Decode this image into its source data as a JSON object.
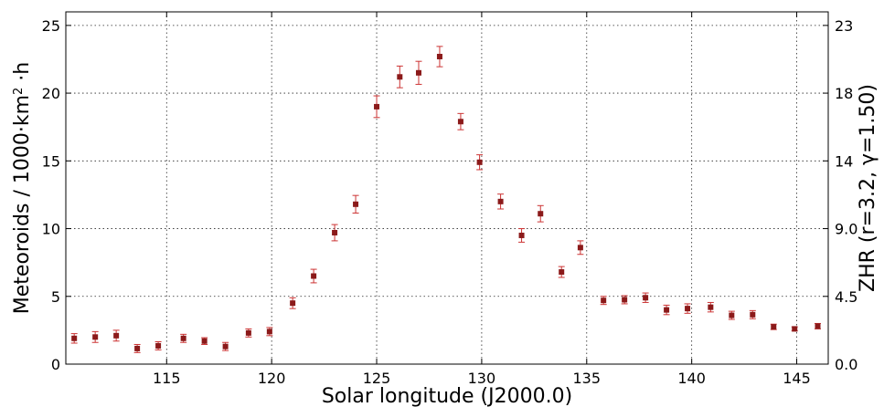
{
  "chart_data": {
    "type": "scatter",
    "xlabel": "Solar longitude (J2000.0)",
    "ylabel": "Meteoroids / 1000·km²·h",
    "ylabel_parts": {
      "prefix": "Meteoroids / 1000·km",
      "sup": "2",
      "suffix": " ·h"
    },
    "y2label": "ZHR (r=3.2, γ=1.50)",
    "xlim": [
      110.2,
      146.5
    ],
    "ylim": [
      0,
      26
    ],
    "xticks": [
      115,
      120,
      125,
      130,
      135,
      140,
      145
    ],
    "yticks": [
      0,
      5,
      10,
      15,
      20,
      25
    ],
    "y2ticks": [
      {
        "value": 0,
        "label": "0.0"
      },
      {
        "value": 5,
        "label": "4.5"
      },
      {
        "value": 10,
        "label": "9.0"
      },
      {
        "value": 15,
        "label": "14"
      },
      {
        "value": 20,
        "label": "18"
      },
      {
        "value": 25,
        "label": "23"
      }
    ],
    "grid": true,
    "marker_color": "#8b1a1a",
    "errorbar_color": "#cc3333",
    "series": [
      {
        "points": [
          {
            "x": 110.6,
            "y": 1.9,
            "err": 0.35
          },
          {
            "x": 111.6,
            "y": 2.0,
            "err": 0.4
          },
          {
            "x": 112.6,
            "y": 2.1,
            "err": 0.4
          },
          {
            "x": 113.6,
            "y": 1.15,
            "err": 0.3
          },
          {
            "x": 114.6,
            "y": 1.35,
            "err": 0.3
          },
          {
            "x": 115.8,
            "y": 1.9,
            "err": 0.3
          },
          {
            "x": 116.8,
            "y": 1.7,
            "err": 0.25
          },
          {
            "x": 117.8,
            "y": 1.3,
            "err": 0.3
          },
          {
            "x": 118.9,
            "y": 2.3,
            "err": 0.3
          },
          {
            "x": 119.9,
            "y": 2.4,
            "err": 0.3
          },
          {
            "x": 121.0,
            "y": 4.5,
            "err": 0.4
          },
          {
            "x": 122.0,
            "y": 6.5,
            "err": 0.5
          },
          {
            "x": 123.0,
            "y": 9.7,
            "err": 0.6
          },
          {
            "x": 124.0,
            "y": 11.8,
            "err": 0.65
          },
          {
            "x": 125.0,
            "y": 19.0,
            "err": 0.8
          },
          {
            "x": 126.1,
            "y": 21.2,
            "err": 0.8
          },
          {
            "x": 127.0,
            "y": 21.5,
            "err": 0.85
          },
          {
            "x": 128.0,
            "y": 22.7,
            "err": 0.75
          },
          {
            "x": 129.0,
            "y": 17.9,
            "err": 0.6
          },
          {
            "x": 129.9,
            "y": 14.9,
            "err": 0.55
          },
          {
            "x": 130.9,
            "y": 12.0,
            "err": 0.55
          },
          {
            "x": 131.9,
            "y": 9.5,
            "err": 0.5
          },
          {
            "x": 132.8,
            "y": 11.1,
            "err": 0.6
          },
          {
            "x": 133.8,
            "y": 6.8,
            "err": 0.4
          },
          {
            "x": 134.7,
            "y": 8.6,
            "err": 0.5
          },
          {
            "x": 135.8,
            "y": 4.7,
            "err": 0.3
          },
          {
            "x": 136.8,
            "y": 4.75,
            "err": 0.3
          },
          {
            "x": 137.8,
            "y": 4.9,
            "err": 0.35
          },
          {
            "x": 138.8,
            "y": 4.0,
            "err": 0.35
          },
          {
            "x": 139.8,
            "y": 4.1,
            "err": 0.35
          },
          {
            "x": 140.9,
            "y": 4.2,
            "err": 0.35
          },
          {
            "x": 141.9,
            "y": 3.6,
            "err": 0.3
          },
          {
            "x": 142.9,
            "y": 3.65,
            "err": 0.3
          },
          {
            "x": 143.9,
            "y": 2.75,
            "err": 0.2
          },
          {
            "x": 144.9,
            "y": 2.6,
            "err": 0.15
          },
          {
            "x": 146.0,
            "y": 2.8,
            "err": 0.2
          }
        ]
      }
    ]
  }
}
